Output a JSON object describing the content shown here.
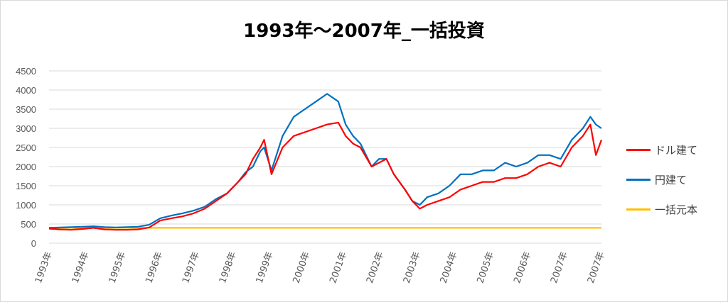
{
  "title": "1993年～2007年_一括投資",
  "colors": {
    "red": "#ff0000",
    "blue": "#0070c0",
    "gold": "#ffc000"
  },
  "chart_data": {
    "type": "line",
    "title": "1993年～2007年_一括投資",
    "xlabel": "",
    "ylabel": "",
    "ylim": [
      0,
      4500
    ],
    "yticks": [
      0,
      500,
      1000,
      1500,
      2000,
      2500,
      3000,
      3500,
      4000,
      4500
    ],
    "x_range": [
      1993.0,
      2007.9
    ],
    "xtick_labels": [
      "1993年",
      "1994年",
      "1995年",
      "1996年",
      "1997年",
      "1998年",
      "1999年",
      "2000年",
      "2001年",
      "2002年",
      "2003年",
      "2004年",
      "2005年",
      "2006年",
      "2007年",
      "2007年"
    ],
    "grid": true,
    "legend_position": "right",
    "series": [
      {
        "name": "ドル建て",
        "color": "#ff0000",
        "x": [
          1993.0,
          1993.3,
          1993.6,
          1993.9,
          1994.2,
          1994.5,
          1994.8,
          1995.1,
          1995.4,
          1995.7,
          1996.0,
          1996.3,
          1996.6,
          1996.9,
          1997.2,
          1997.5,
          1997.8,
          1998.1,
          1998.3,
          1998.5,
          1998.7,
          1998.8,
          1999.0,
          1999.3,
          1999.6,
          1999.9,
          2000.2,
          2000.5,
          2000.8,
          2001.0,
          2001.2,
          2001.4,
          2001.7,
          2001.9,
          2002.1,
          2002.3,
          2002.6,
          2002.8,
          2003.0,
          2003.2,
          2003.5,
          2003.8,
          2004.1,
          2004.4,
          2004.7,
          2005.0,
          2005.3,
          2005.6,
          2005.9,
          2006.2,
          2006.5,
          2006.8,
          2007.1,
          2007.4,
          2007.6,
          2007.75,
          2007.9
        ],
        "values": [
          380,
          360,
          350,
          370,
          400,
          360,
          350,
          350,
          360,
          410,
          590,
          650,
          700,
          780,
          900,
          1100,
          1300,
          1600,
          1800,
          2200,
          2500,
          2700,
          1800,
          2500,
          2800,
          2900,
          3000,
          3100,
          3150,
          2800,
          2600,
          2500,
          2000,
          2100,
          2200,
          1800,
          1400,
          1100,
          900,
          1000,
          1100,
          1200,
          1400,
          1500,
          1600,
          1600,
          1700,
          1700,
          1800,
          2000,
          2100,
          2000,
          2500,
          2800,
          3100,
          2300,
          2700
        ]
      },
      {
        "name": "円建て",
        "color": "#0070c0",
        "x": [
          1993.0,
          1993.3,
          1993.6,
          1993.9,
          1994.2,
          1994.5,
          1994.8,
          1995.1,
          1995.4,
          1995.7,
          1996.0,
          1996.3,
          1996.6,
          1996.9,
          1997.2,
          1997.5,
          1997.8,
          1998.1,
          1998.3,
          1998.5,
          1998.7,
          1998.8,
          1999.0,
          1999.3,
          1999.6,
          1999.9,
          2000.2,
          2000.5,
          2000.8,
          2001.0,
          2001.2,
          2001.4,
          2001.7,
          2001.9,
          2002.1,
          2002.3,
          2002.6,
          2002.8,
          2003.0,
          2003.2,
          2003.5,
          2003.8,
          2004.1,
          2004.4,
          2004.7,
          2005.0,
          2005.3,
          2005.6,
          2005.9,
          2006.2,
          2006.5,
          2006.8,
          2007.1,
          2007.4,
          2007.6,
          2007.75,
          2007.9
        ],
        "values": [
          400,
          410,
          420,
          430,
          440,
          420,
          410,
          420,
          430,
          480,
          650,
          720,
          780,
          850,
          950,
          1150,
          1300,
          1600,
          1850,
          2000,
          2400,
          2500,
          1900,
          2800,
          3300,
          3500,
          3700,
          3900,
          3700,
          3100,
          2800,
          2600,
          2000,
          2200,
          2200,
          1800,
          1400,
          1100,
          1000,
          1200,
          1300,
          1500,
          1800,
          1800,
          1900,
          1900,
          2100,
          2000,
          2100,
          2300,
          2300,
          2200,
          2700,
          3000,
          3300,
          3100,
          3000
        ]
      },
      {
        "name": "一括元本",
        "color": "#ffc000",
        "x": [
          1993.0,
          2007.9
        ],
        "values": [
          400,
          400
        ]
      }
    ]
  }
}
